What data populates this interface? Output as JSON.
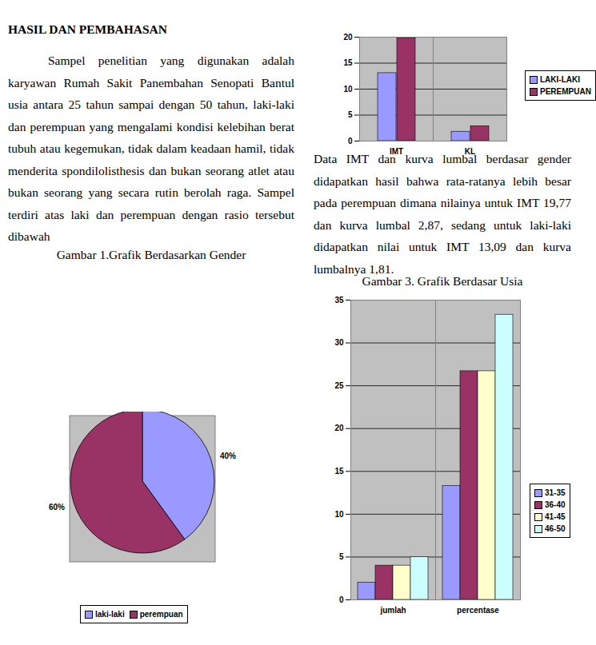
{
  "heading": "HASIL DAN PEMBAHASAN",
  "paragraphs": [
    "Sampel penelitian yang digunakan adalah karyawan Rumah Sakit Panembahan Senopati Bantul usia antara 25 tahun sampai dengan 50 tahun, laki-laki dan perempuan yang mengalami kondisi kelebihan berat tubuh atau kegemukan, tidak dalam keadaan hamil, tidak menderita spondilolisthesis dan bukan seorang atlet atau bukan seorang yang secara rutin berolah raga. Sampel terdiri atas laki dan perempuan dengan rasio tersebut dibawah",
    "Data IMT dan kurva lumbal berdasar gender didapatkan hasil bahwa rata-ratanya lebih besar pada perempuan dimana nilainya untuk IMT 19,77 dan kurva lumbal 2,87, sedang untuk laki-laki didapatkan nilai untuk IMT 13,09 dan kurva lumbalnya 1,81."
  ],
  "chart_data": [
    {
      "type": "pie",
      "title": "Gambar 1.Grafik Berdasarkan Gender",
      "categories": [
        "laki-laki",
        "perempuan"
      ],
      "values": [
        40,
        60
      ],
      "value_labels": [
        "40%",
        "60%"
      ],
      "colors": [
        "#9999ff",
        "#993366"
      ],
      "data_labels": true,
      "legend": "bottom"
    },
    {
      "type": "bar",
      "categories": [
        "IMT",
        "KL"
      ],
      "series": [
        {
          "name": "LAKI-LAKI",
          "color": "#9999ff",
          "values": [
            13.09,
            1.81
          ]
        },
        {
          "name": "PEREMPUAN",
          "color": "#993366",
          "values": [
            19.77,
            2.87
          ]
        }
      ],
      "ylim": [
        0,
        20
      ],
      "yticks": [
        0,
        5,
        10,
        15,
        20
      ],
      "grid": true,
      "legend": "right"
    },
    {
      "type": "bar",
      "title": "Gambar 3. Grafik  Berdasar Usia",
      "categories": [
        "jumlah",
        "percentase"
      ],
      "series": [
        {
          "name": "31-35",
          "color": "#9999ff",
          "values": [
            2,
            13.3
          ]
        },
        {
          "name": "36-40",
          "color": "#993366",
          "values": [
            4,
            26.7
          ]
        },
        {
          "name": "41-45",
          "color": "#ffffcc",
          "values": [
            4,
            26.7
          ]
        },
        {
          "name": "46-50",
          "color": "#ccffff",
          "values": [
            5,
            33.3
          ]
        }
      ],
      "ylim": [
        0,
        35
      ],
      "yticks": [
        0,
        5,
        10,
        15,
        20,
        25,
        30,
        35
      ],
      "grid": true,
      "legend": "right"
    }
  ]
}
